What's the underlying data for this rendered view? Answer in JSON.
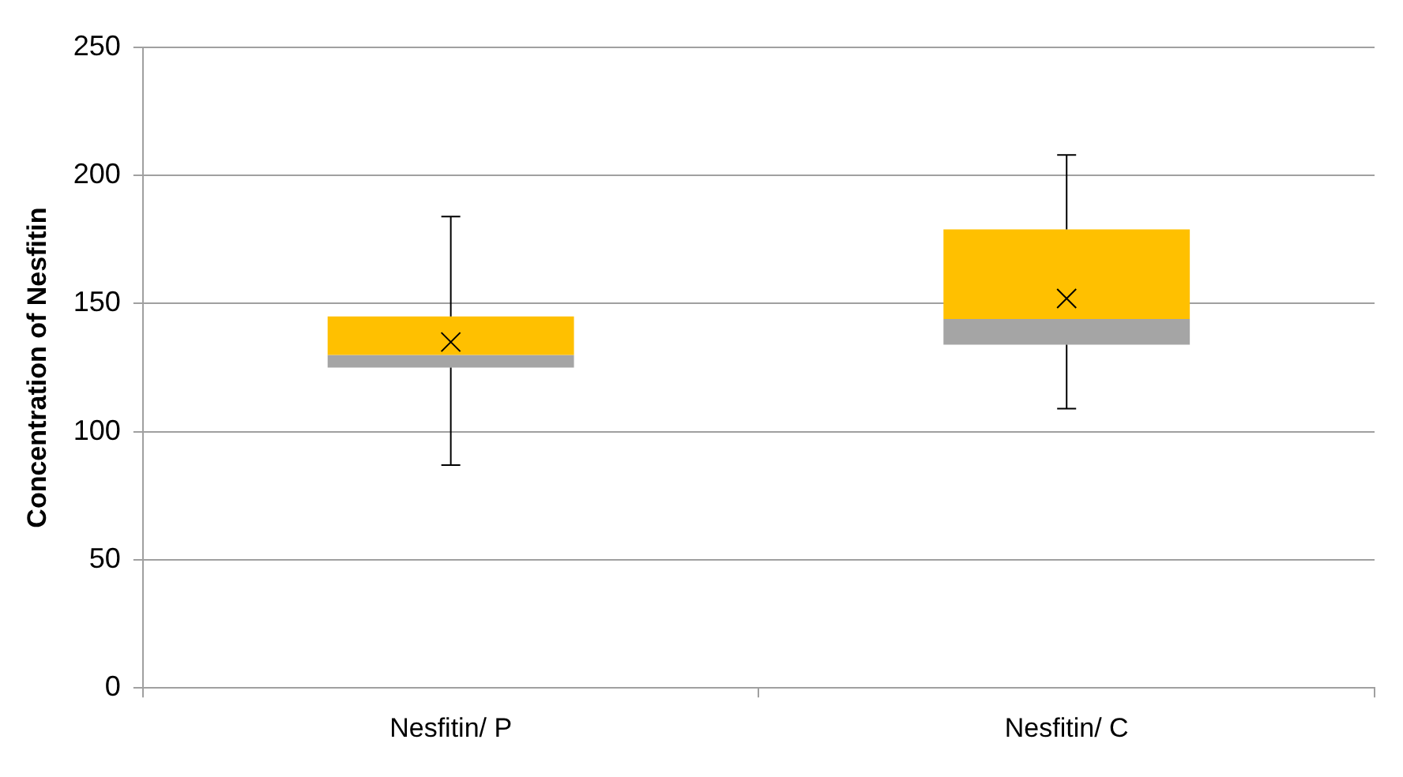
{
  "chart_data": {
    "type": "box",
    "ylabel": "Concentration of Nesfitin",
    "categories": [
      "Nesfitin/ P",
      "Nesfitin/ C"
    ],
    "series": [
      {
        "color": "#ffc000",
        "colors": [
          "#a5a5a5",
          "#a5a5a5"
        ],
        "boxes": [
          {
            "low": 87,
            "q1": 125,
            "median": 130,
            "q3": 145,
            "high": 184,
            "mean": 135
          },
          {
            "low": 109,
            "q1": 134,
            "median": 144,
            "q3": 179,
            "high": 208,
            "mean": 152
          }
        ]
      }
    ],
    "ylim": [
      0,
      250
    ],
    "yticks": [
      0,
      50,
      100,
      150,
      200,
      250
    ],
    "grid": "y",
    "marker": "cross",
    "legend": false
  }
}
